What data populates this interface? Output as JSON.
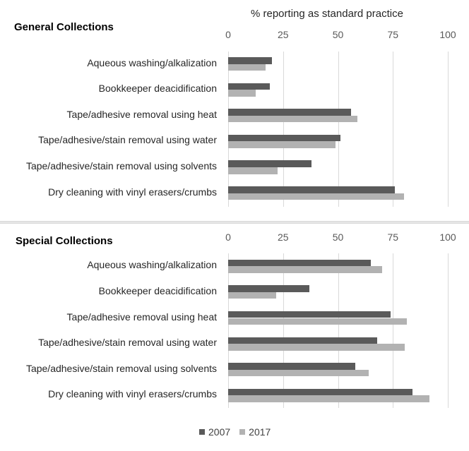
{
  "chart_data": [
    {
      "type": "bar",
      "orientation": "horizontal",
      "title": "General Collections",
      "xlabel": "% reporting as standard practice",
      "ylabel": "",
      "xlim": [
        0,
        100
      ],
      "xticks": [
        "0",
        "25",
        "50",
        "75",
        "100"
      ],
      "grid": true,
      "legend_position": "bottom",
      "categories": [
        "Aqueous washing/alkalization",
        "Bookkeeper deacidification",
        "Tape/adhesive removal using heat",
        "Tape/adhesive/stain removal using water",
        "Tape/adhesive/stain removal using solvents",
        "Dry cleaning with vinyl erasers/crumbs"
      ],
      "series": [
        {
          "name": "2007",
          "color": "#5a5a5a",
          "values": [
            20,
            19,
            56,
            51,
            38,
            76
          ]
        },
        {
          "name": "2017",
          "color": "#b2b2b2",
          "values": [
            17,
            12.5,
            59,
            49,
            22.5,
            80
          ]
        }
      ]
    },
    {
      "type": "bar",
      "orientation": "horizontal",
      "title": "Special Collections",
      "xlabel": "% reporting as standard practice",
      "ylabel": "",
      "xlim": [
        0,
        100
      ],
      "xticks": [
        "0",
        "25",
        "50",
        "75",
        "100"
      ],
      "grid": true,
      "legend_position": "bottom",
      "categories": [
        "Aqueous washing/alkalization",
        "Bookkeeper deacidification",
        "Tape/adhesive removal using heat",
        "Tape/adhesive/stain removal using water",
        "Tape/adhesive/stain removal using solvents",
        "Dry cleaning with vinyl erasers/crumbs"
      ],
      "series": [
        {
          "name": "2007",
          "color": "#5a5a5a",
          "values": [
            65,
            37,
            74,
            68,
            58,
            84
          ]
        },
        {
          "name": "2017",
          "color": "#b2b2b2",
          "values": [
            70,
            22,
            81.5,
            80.5,
            64,
            91.5
          ]
        }
      ]
    }
  ],
  "axis_title": "% reporting as standard practice",
  "legend": [
    {
      "label": "2007",
      "color": "#5a5a5a"
    },
    {
      "label": "2017",
      "color": "#b2b2b2"
    }
  ]
}
